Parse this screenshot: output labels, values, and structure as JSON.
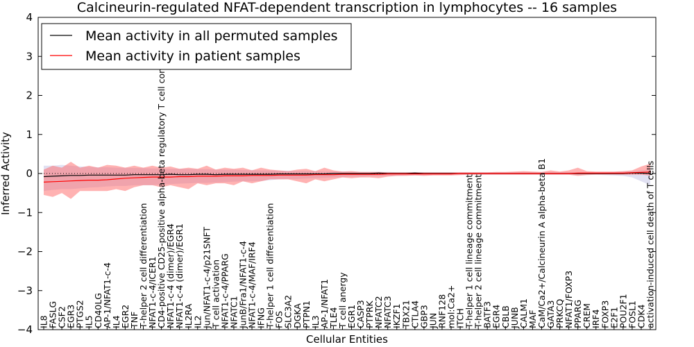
{
  "chart_data": {
    "type": "line",
    "title": "Calcineurin-regulated NFAT-dependent transcription in lymphocytes -- 16 samples",
    "xlabel": "Cellular Entities",
    "ylabel": "Inferred Activity",
    "ylim": [
      -4,
      4
    ],
    "yticks": [
      -4,
      -3,
      -2,
      -1,
      0,
      1,
      2,
      3,
      4
    ],
    "yticklabels": [
      "−4",
      "−3",
      "−2",
      "−1",
      "0",
      "1",
      "2",
      "3",
      "4"
    ],
    "grid": false,
    "legend_position": "top-left",
    "categories": [
      "IL8",
      "FASLG",
      "CSF2",
      "EGR3",
      "PTGS2",
      "IL5",
      "CD40LG",
      "AP-1/NFAT1-c-4",
      "IL4",
      "EGR2",
      "TNF",
      "T-helper 2 cell differentiation",
      "NFAT1-c-4/ICER1",
      "CD4-positive CD25-positive alpha-beta regulatory T cell commitment",
      "NFAT1-c-4 (dimer)/EGR4",
      "NFAT1-c-4 (dimer)/EGR1",
      "IL2RA",
      "IL2",
      "Jun/NFAT1-c-4/p21SNFT",
      "T cell activation",
      "NFAT1-c-4/PPARG",
      "NFATC1",
      "JunB/Fra1/NFAT1-c-4",
      "NFAT1-c-4/MAF/IRF4",
      "IFNG",
      "T-helper 1 cell differentiation",
      "FOS",
      "SLC3A2",
      "DGKA",
      "PTPN1",
      "IL3",
      "AP-1/NFAT1",
      "TLE4",
      "T cell anergy",
      "EGR1",
      "CASP3",
      "PTPRK",
      "NFATC2",
      "NFATC3",
      "IKZF1",
      "TBX21",
      "CTLA4",
      "GBP3",
      "JUN",
      "RNF128",
      "mol:Ca2+",
      "ITCH",
      "T-helper 1 cell lineage commitment",
      "T-helper 2 cell lineage commitment",
      "BATF3",
      "EGR4",
      "CBLB",
      "JUNB",
      "CALM1",
      "MAF",
      "CaM/Ca2+/Calcineurin A alpha-beta B1",
      "GATA3",
      "PRKCQ",
      "NFAT1/FOXP3",
      "PPARG",
      "CREM",
      "IRF4",
      "FOXP3",
      "E2F1",
      "POU2F1",
      "FOSL1",
      "CDK4",
      "activation-induced cell death of T cells"
    ],
    "series": [
      {
        "name": "Mean activity in all permuted samples",
        "color": "#000000",
        "band_color": "#c8c8e8",
        "values": [
          -0.08,
          -0.07,
          -0.06,
          -0.05,
          -0.05,
          -0.04,
          -0.04,
          -0.04,
          -0.04,
          -0.04,
          -0.03,
          -0.03,
          -0.03,
          -0.03,
          -0.02,
          -0.03,
          -0.03,
          -0.02,
          -0.02,
          -0.03,
          -0.02,
          -0.02,
          -0.02,
          -0.02,
          -0.02,
          -0.02,
          -0.01,
          -0.01,
          -0.01,
          -0.01,
          -0.01,
          -0.01,
          0.0,
          0.0,
          0.0,
          0.0,
          0.0,
          0.01,
          0.0,
          0.0,
          0.0,
          0.01,
          0.0,
          0.0,
          0.0,
          0.0,
          0.0,
          0.0,
          0.0,
          0.0,
          0.0,
          0.0,
          0.0,
          0.0,
          0.0,
          0.0,
          0.0,
          0.0,
          0.0,
          0.0,
          0.0,
          0.0,
          0.0,
          0.0,
          0.0,
          0.01,
          0.01,
          0.0
        ],
        "lower": [
          -0.45,
          -0.42,
          -0.4,
          -0.4,
          -0.38,
          -0.36,
          -0.35,
          -0.33,
          -0.32,
          -0.32,
          -0.3,
          -0.3,
          -0.3,
          -0.28,
          -0.27,
          -0.26,
          -0.25,
          -0.24,
          -0.24,
          -0.23,
          -0.22,
          -0.21,
          -0.2,
          -0.2,
          -0.19,
          -0.17,
          -0.15,
          -0.14,
          -0.14,
          -0.13,
          -0.12,
          -0.11,
          -0.1,
          -0.09,
          -0.08,
          -0.08,
          -0.07,
          -0.07,
          -0.06,
          -0.06,
          -0.05,
          -0.05,
          -0.05,
          -0.04,
          -0.04,
          -0.04,
          -0.03,
          -0.03,
          -0.03,
          -0.03,
          -0.03,
          -0.03,
          -0.03,
          -0.03,
          -0.03,
          -0.03,
          -0.03,
          -0.03,
          -0.03,
          -0.03,
          -0.03,
          -0.03,
          -0.04,
          -0.05,
          -0.06,
          -0.1,
          -0.2,
          -0.3
        ],
        "upper": [
          0.2,
          0.2,
          0.22,
          0.2,
          0.18,
          0.17,
          0.16,
          0.16,
          0.15,
          0.15,
          0.14,
          0.14,
          0.13,
          0.13,
          0.12,
          0.12,
          0.12,
          0.11,
          0.11,
          0.1,
          0.1,
          0.1,
          0.09,
          0.09,
          0.08,
          0.08,
          0.07,
          0.07,
          0.06,
          0.06,
          0.06,
          0.05,
          0.05,
          0.05,
          0.04,
          0.04,
          0.04,
          0.04,
          0.04,
          0.03,
          0.03,
          0.03,
          0.03,
          0.03,
          0.03,
          0.03,
          0.03,
          0.03,
          0.03,
          0.03,
          0.03,
          0.03,
          0.03,
          0.03,
          0.03,
          0.03,
          0.03,
          0.03,
          0.03,
          0.03,
          0.03,
          0.03,
          0.03,
          0.04,
          0.05,
          0.06,
          0.08,
          0.1
        ]
      },
      {
        "name": "Mean activity in patient samples",
        "color": "#ff0000",
        "band_color": "#ff6666",
        "values": [
          -0.22,
          -0.21,
          -0.2,
          -0.19,
          -0.18,
          -0.17,
          -0.17,
          -0.16,
          -0.14,
          -0.12,
          -0.11,
          -0.1,
          -0.09,
          -0.09,
          -0.09,
          -0.08,
          -0.08,
          -0.07,
          -0.07,
          -0.07,
          -0.06,
          -0.06,
          -0.06,
          -0.05,
          -0.05,
          -0.05,
          -0.04,
          -0.04,
          -0.04,
          -0.04,
          -0.03,
          -0.03,
          -0.03,
          -0.02,
          -0.02,
          -0.02,
          -0.02,
          -0.02,
          -0.01,
          -0.01,
          -0.01,
          -0.01,
          -0.01,
          -0.01,
          -0.01,
          -0.01,
          0.0,
          0.0,
          0.0,
          0.0,
          0.0,
          0.0,
          0.0,
          0.0,
          0.0,
          0.0,
          0.0,
          0.0,
          0.0,
          0.01,
          0.01,
          0.01,
          0.01,
          0.01,
          0.01,
          0.02,
          0.03,
          0.04
        ],
        "lower": [
          -0.55,
          -0.6,
          -0.5,
          -0.65,
          -0.45,
          -0.45,
          -0.45,
          -0.45,
          -0.4,
          -0.45,
          -0.35,
          -0.3,
          -0.3,
          -0.35,
          -0.3,
          -0.35,
          -0.4,
          -0.25,
          -0.3,
          -0.25,
          -0.25,
          -0.3,
          -0.2,
          -0.25,
          -0.2,
          -0.15,
          -0.15,
          -0.15,
          -0.2,
          -0.25,
          -0.15,
          -0.2,
          -0.15,
          -0.1,
          -0.12,
          -0.1,
          -0.1,
          -0.12,
          -0.08,
          -0.06,
          -0.06,
          -0.05,
          -0.06,
          -0.05,
          -0.05,
          -0.05,
          -0.04,
          -0.03,
          -0.03,
          -0.03,
          -0.03,
          -0.03,
          -0.03,
          -0.03,
          -0.03,
          -0.03,
          -0.03,
          -0.03,
          -0.03,
          -0.06,
          -0.04,
          -0.03,
          -0.03,
          -0.03,
          -0.03,
          -0.03,
          -0.03,
          -0.05
        ],
        "upper": [
          0.1,
          0.2,
          0.15,
          0.3,
          0.15,
          0.2,
          0.15,
          0.22,
          0.2,
          0.15,
          0.2,
          0.15,
          0.2,
          0.15,
          0.18,
          0.12,
          0.15,
          0.12,
          0.2,
          0.1,
          0.15,
          0.12,
          0.15,
          0.08,
          0.15,
          0.1,
          0.08,
          0.06,
          0.1,
          0.12,
          0.06,
          0.15,
          0.08,
          0.05,
          0.06,
          0.04,
          0.04,
          0.04,
          0.03,
          0.03,
          0.03,
          0.03,
          0.03,
          0.03,
          0.03,
          0.03,
          0.03,
          0.03,
          0.03,
          0.03,
          0.04,
          0.04,
          0.05,
          0.06,
          0.05,
          0.04,
          0.08,
          0.05,
          0.08,
          0.15,
          0.06,
          0.05,
          0.05,
          0.05,
          0.06,
          0.08,
          0.18,
          0.25
        ]
      }
    ],
    "reference_line": 0
  }
}
